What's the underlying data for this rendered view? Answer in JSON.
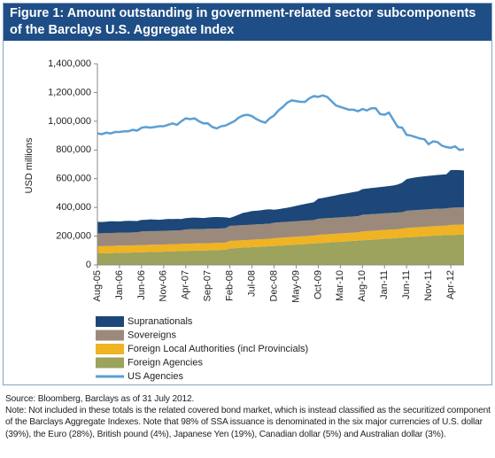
{
  "chart_data": {
    "type": "area",
    "stacked": true,
    "title": "Figure 1: Amount outstanding in government-related sector subcomponents of the Barclays U.S. Aggregate Index",
    "ylabel": "USD millions",
    "categories": [
      "Aug-05",
      null,
      null,
      null,
      null,
      "Jan-06",
      null,
      null,
      null,
      null,
      "Jun-06",
      null,
      null,
      null,
      null,
      "Nov-06",
      null,
      null,
      null,
      null,
      "Apr-07",
      null,
      null,
      null,
      null,
      "Sep-07",
      null,
      null,
      null,
      null,
      "Feb-08",
      null,
      null,
      null,
      null,
      "Jul-08",
      null,
      null,
      null,
      null,
      "Dec-08",
      null,
      null,
      null,
      null,
      "May-09",
      null,
      null,
      null,
      null,
      "Oct-09",
      null,
      null,
      null,
      null,
      "Mar-10",
      null,
      null,
      null,
      null,
      "Aug-10",
      null,
      null,
      null,
      null,
      "Jan-11",
      null,
      null,
      null,
      null,
      "Jun-11",
      null,
      null,
      null,
      null,
      "Nov-11",
      null,
      null,
      null,
      null,
      "Apr-12",
      null,
      null,
      null
    ],
    "ylim": [
      0,
      1400000
    ],
    "yticks": [
      0,
      {
        "value": 200000,
        "label": "200,000"
      },
      {
        "value": 400000,
        "label": "400,000"
      },
      {
        "value": 600000,
        "label": "600,000"
      },
      {
        "value": 800000,
        "label": "800,000"
      },
      {
        "value": 1000000,
        "label": "1,000,000"
      },
      {
        "value": 1200000,
        "label": "1,200,000"
      },
      {
        "value": 1400000,
        "label": "1,400,000"
      }
    ],
    "series": [
      {
        "name": "Supranationals",
        "color": "#1c4778",
        "kind": "area",
        "stack_order": 3,
        "values": [
          80000,
          78000,
          80000,
          82000,
          80000,
          78000,
          80000,
          82000,
          80000,
          78000,
          80000,
          80000,
          82000,
          80000,
          78000,
          80000,
          82000,
          80000,
          80000,
          78000,
          78000,
          80000,
          80000,
          78000,
          76000,
          78000,
          80000,
          80000,
          78000,
          76000,
          55000,
          65000,
          75000,
          85000,
          90000,
          95000,
          95000,
          97000,
          100000,
          100000,
          90000,
          92000,
          95000,
          98000,
          102000,
          107000,
          112000,
          116000,
          120000,
          124000,
          140000,
          143000,
          147000,
          151000,
          155000,
          160000,
          163000,
          166000,
          170000,
          173000,
          178000,
          180000,
          182000,
          183000,
          185000,
          186000,
          188000,
          190000,
          195000,
          205000,
          220000,
          225000,
          228000,
          230000,
          232000,
          233000,
          234000,
          235000,
          236000,
          238000,
          262000,
          262000,
          260000,
          255000
        ]
      },
      {
        "name": "Sovereigns",
        "color": "#9b8a7b",
        "kind": "area",
        "stack_order": 2,
        "values": [
          90000,
          90000,
          90000,
          90000,
          90000,
          90000,
          90000,
          90000,
          90000,
          90000,
          95000,
          95000,
          95000,
          95000,
          95000,
          95000,
          95000,
          95000,
          95000,
          95000,
          100000,
          100000,
          100000,
          100000,
          100000,
          100000,
          100000,
          100000,
          100000,
          100000,
          105000,
          105000,
          105000,
          105000,
          105000,
          105000,
          105000,
          105000,
          105000,
          105000,
          108000,
          108000,
          108000,
          108000,
          108000,
          108000,
          108000,
          108000,
          108000,
          108000,
          112000,
          112000,
          112000,
          112000,
          112000,
          112000,
          112000,
          112000,
          112000,
          112000,
          116000,
          116000,
          116000,
          116000,
          116000,
          116000,
          116000,
          116000,
          116000,
          116000,
          120000,
          120000,
          120000,
          120000,
          120000,
          120000,
          120000,
          120000,
          120000,
          120000,
          120000,
          120000,
          120000,
          120000
        ]
      },
      {
        "name": "Foreign Local Authorities (incl Provincials)",
        "color": "#f0b323",
        "kind": "area",
        "stack_order": 1,
        "values": [
          50000,
          50000,
          50000,
          50000,
          50000,
          50000,
          50000,
          50000,
          50000,
          50000,
          50000,
          50000,
          50000,
          50000,
          50000,
          50000,
          50000,
          50000,
          50000,
          50000,
          50000,
          50000,
          50000,
          50000,
          50000,
          50000,
          50000,
          50000,
          50000,
          50000,
          52000,
          52000,
          52000,
          52000,
          52000,
          52000,
          52000,
          52000,
          52000,
          52000,
          55000,
          55000,
          55000,
          55000,
          55000,
          55000,
          55000,
          55000,
          55000,
          55000,
          58000,
          58000,
          58000,
          58000,
          58000,
          58000,
          58000,
          58000,
          58000,
          58000,
          62000,
          62000,
          62000,
          62000,
          62000,
          62000,
          62000,
          62000,
          62000,
          62000,
          66000,
          66000,
          66000,
          66000,
          66000,
          66000,
          66000,
          66000,
          66000,
          66000,
          70000,
          70000,
          70000,
          70000
        ]
      },
      {
        "name": "Foreign Agencies",
        "color": "#9ba35c",
        "kind": "area",
        "stack_order": 0,
        "values": [
          80000,
          80000,
          81000,
          82000,
          83000,
          84000,
          85000,
          85000,
          86000,
          87000,
          88000,
          89000,
          90000,
          90000,
          91000,
          92000,
          93000,
          94000,
          95000,
          96000,
          97000,
          98000,
          99000,
          100000,
          100000,
          101000,
          102000,
          103000,
          104000,
          105000,
          115000,
          116000,
          118000,
          120000,
          121000,
          123000,
          125000,
          126000,
          128000,
          130000,
          131000,
          133000,
          135000,
          137000,
          139000,
          141000,
          143000,
          145000,
          147000,
          149000,
          151000,
          153000,
          155000,
          157000,
          159000,
          161000,
          163000,
          165000,
          167000,
          169000,
          171000,
          173000,
          175000,
          177000,
          179000,
          181000,
          183000,
          185000,
          187000,
          189000,
          191000,
          193000,
          195000,
          197000,
          199000,
          201000,
          203000,
          205000,
          206000,
          207000,
          208000,
          209000,
          210000,
          212000
        ]
      },
      {
        "name": "US Agencies",
        "color": "#5b9fd4",
        "kind": "line",
        "values": [
          915000,
          910000,
          920000,
          915000,
          925000,
          925000,
          930000,
          930000,
          940000,
          935000,
          955000,
          960000,
          955000,
          960000,
          965000,
          965000,
          975000,
          985000,
          975000,
          1000000,
          1020000,
          1015000,
          1020000,
          1000000,
          985000,
          985000,
          960000,
          950000,
          965000,
          970000,
          985000,
          1000000,
          1025000,
          1040000,
          1045000,
          1035000,
          1015000,
          1000000,
          990000,
          1020000,
          1040000,
          1075000,
          1100000,
          1130000,
          1145000,
          1140000,
          1135000,
          1135000,
          1160000,
          1175000,
          1170000,
          1180000,
          1170000,
          1140000,
          1110000,
          1100000,
          1090000,
          1080000,
          1080000,
          1070000,
          1085000,
          1075000,
          1090000,
          1090000,
          1050000,
          1045000,
          1060000,
          1010000,
          960000,
          955000,
          905000,
          900000,
          890000,
          880000,
          875000,
          840000,
          860000,
          855000,
          830000,
          820000,
          815000,
          825000,
          800000,
          805000
        ]
      }
    ],
    "source": "Source: Bloomberg, Barclays as of 31 July 2012.",
    "note": "Note: Not included in these totals is the related covered bond market, which is instead classified as the securitized component of the Barclays Aggregate Indexes. Note that 98% of SSA issuance is denominated in the six major currencies of U.S. dollar (39%), the Euro (28%), British pound (4%), Japanese Yen (19%), Canadian dollar (5%) and Australian dollar (3%)."
  }
}
